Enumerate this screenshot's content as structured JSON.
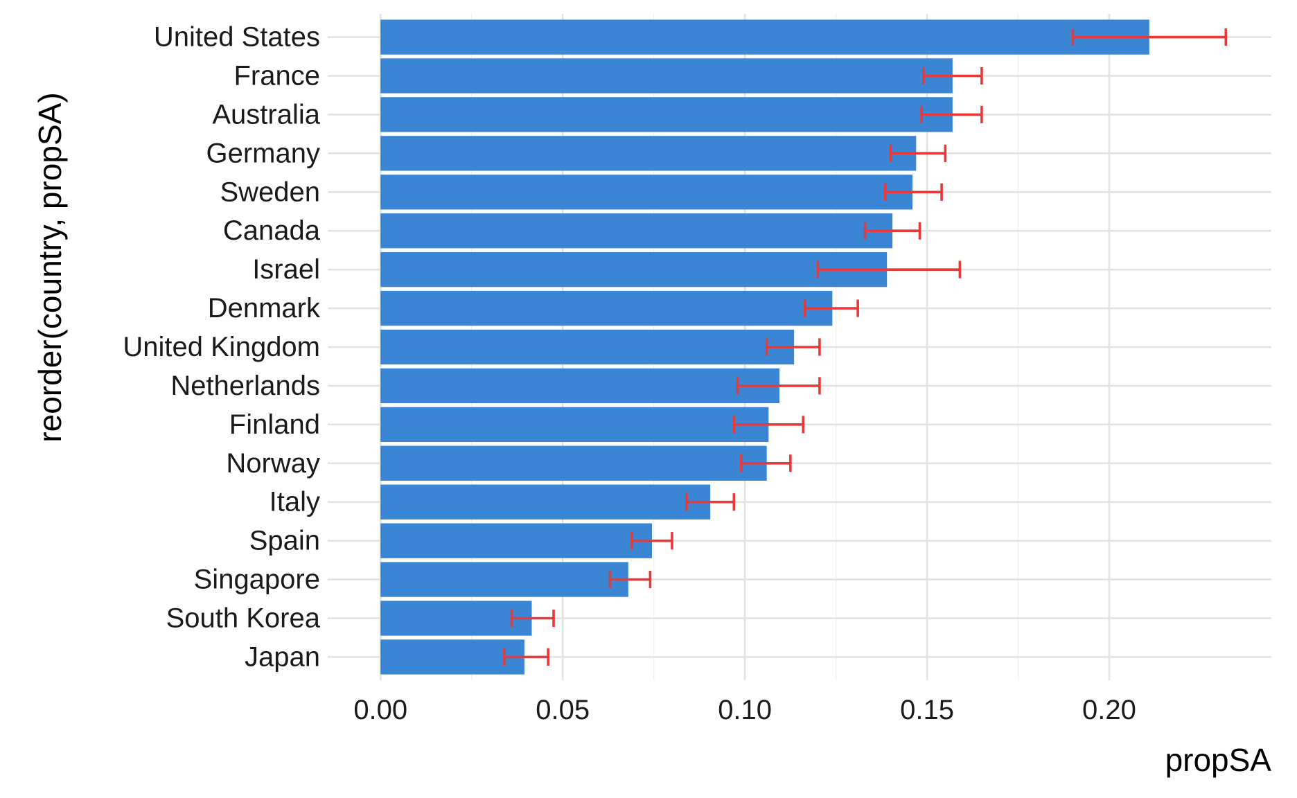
{
  "chart_data": {
    "type": "bar",
    "orientation": "horizontal",
    "xlabel": "propSA",
    "ylabel": "reorder(country, propSA)",
    "xlim": [
      -0.0145,
      0.2445
    ],
    "xticks": [
      0.0,
      0.05,
      0.1,
      0.15,
      0.2
    ],
    "xtick_labels": [
      "0.00",
      "0.05",
      "0.10",
      "0.15",
      "0.20"
    ],
    "grid": true,
    "categories": [
      "United States",
      "France",
      "Australia",
      "Germany",
      "Sweden",
      "Canada",
      "Israel",
      "Denmark",
      "United Kingdom",
      "Netherlands",
      "Finland",
      "Norway",
      "Italy",
      "Spain",
      "Singapore",
      "South Korea",
      "Japan"
    ],
    "values": [
      0.211,
      0.157,
      0.157,
      0.147,
      0.146,
      0.1405,
      0.139,
      0.124,
      0.1135,
      0.1095,
      0.1065,
      0.106,
      0.0905,
      0.0745,
      0.068,
      0.0415,
      0.0395
    ],
    "error_low": [
      0.19,
      0.149,
      0.1485,
      0.14,
      0.1385,
      0.133,
      0.12,
      0.1165,
      0.106,
      0.098,
      0.097,
      0.099,
      0.084,
      0.069,
      0.063,
      0.036,
      0.034
    ],
    "error_high": [
      0.232,
      0.165,
      0.165,
      0.155,
      0.154,
      0.148,
      0.159,
      0.131,
      0.1205,
      0.1205,
      0.116,
      0.1125,
      0.097,
      0.08,
      0.074,
      0.0475,
      0.046
    ],
    "colors": {
      "bar": "#3a86d4",
      "error_bar": "#e8393a",
      "grid": "#e2e2e2"
    }
  }
}
